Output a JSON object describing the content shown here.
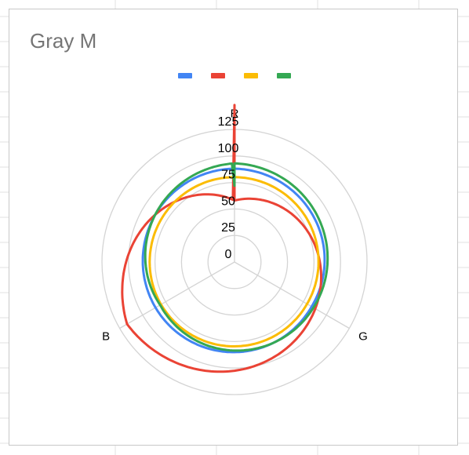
{
  "chart_data": {
    "type": "radar",
    "title": "Gray M",
    "axes": [
      "R",
      "G",
      "B"
    ],
    "rticks": [
      "0",
      "25",
      "50",
      "75",
      "100",
      "125"
    ],
    "rlim": [
      0,
      125
    ],
    "grid": true,
    "legend_position": "top",
    "series": [
      {
        "color": "#4285F4",
        "values": [
          88,
          84,
          86
        ]
      },
      {
        "color": "#EA4335",
        "values": [
          58,
          88,
          117
        ]
      },
      {
        "color": "#FBBC04",
        "values": [
          80,
          79,
          80
        ]
      },
      {
        "color": "#34A853",
        "values": [
          93,
          86,
          81
        ]
      }
    ]
  }
}
